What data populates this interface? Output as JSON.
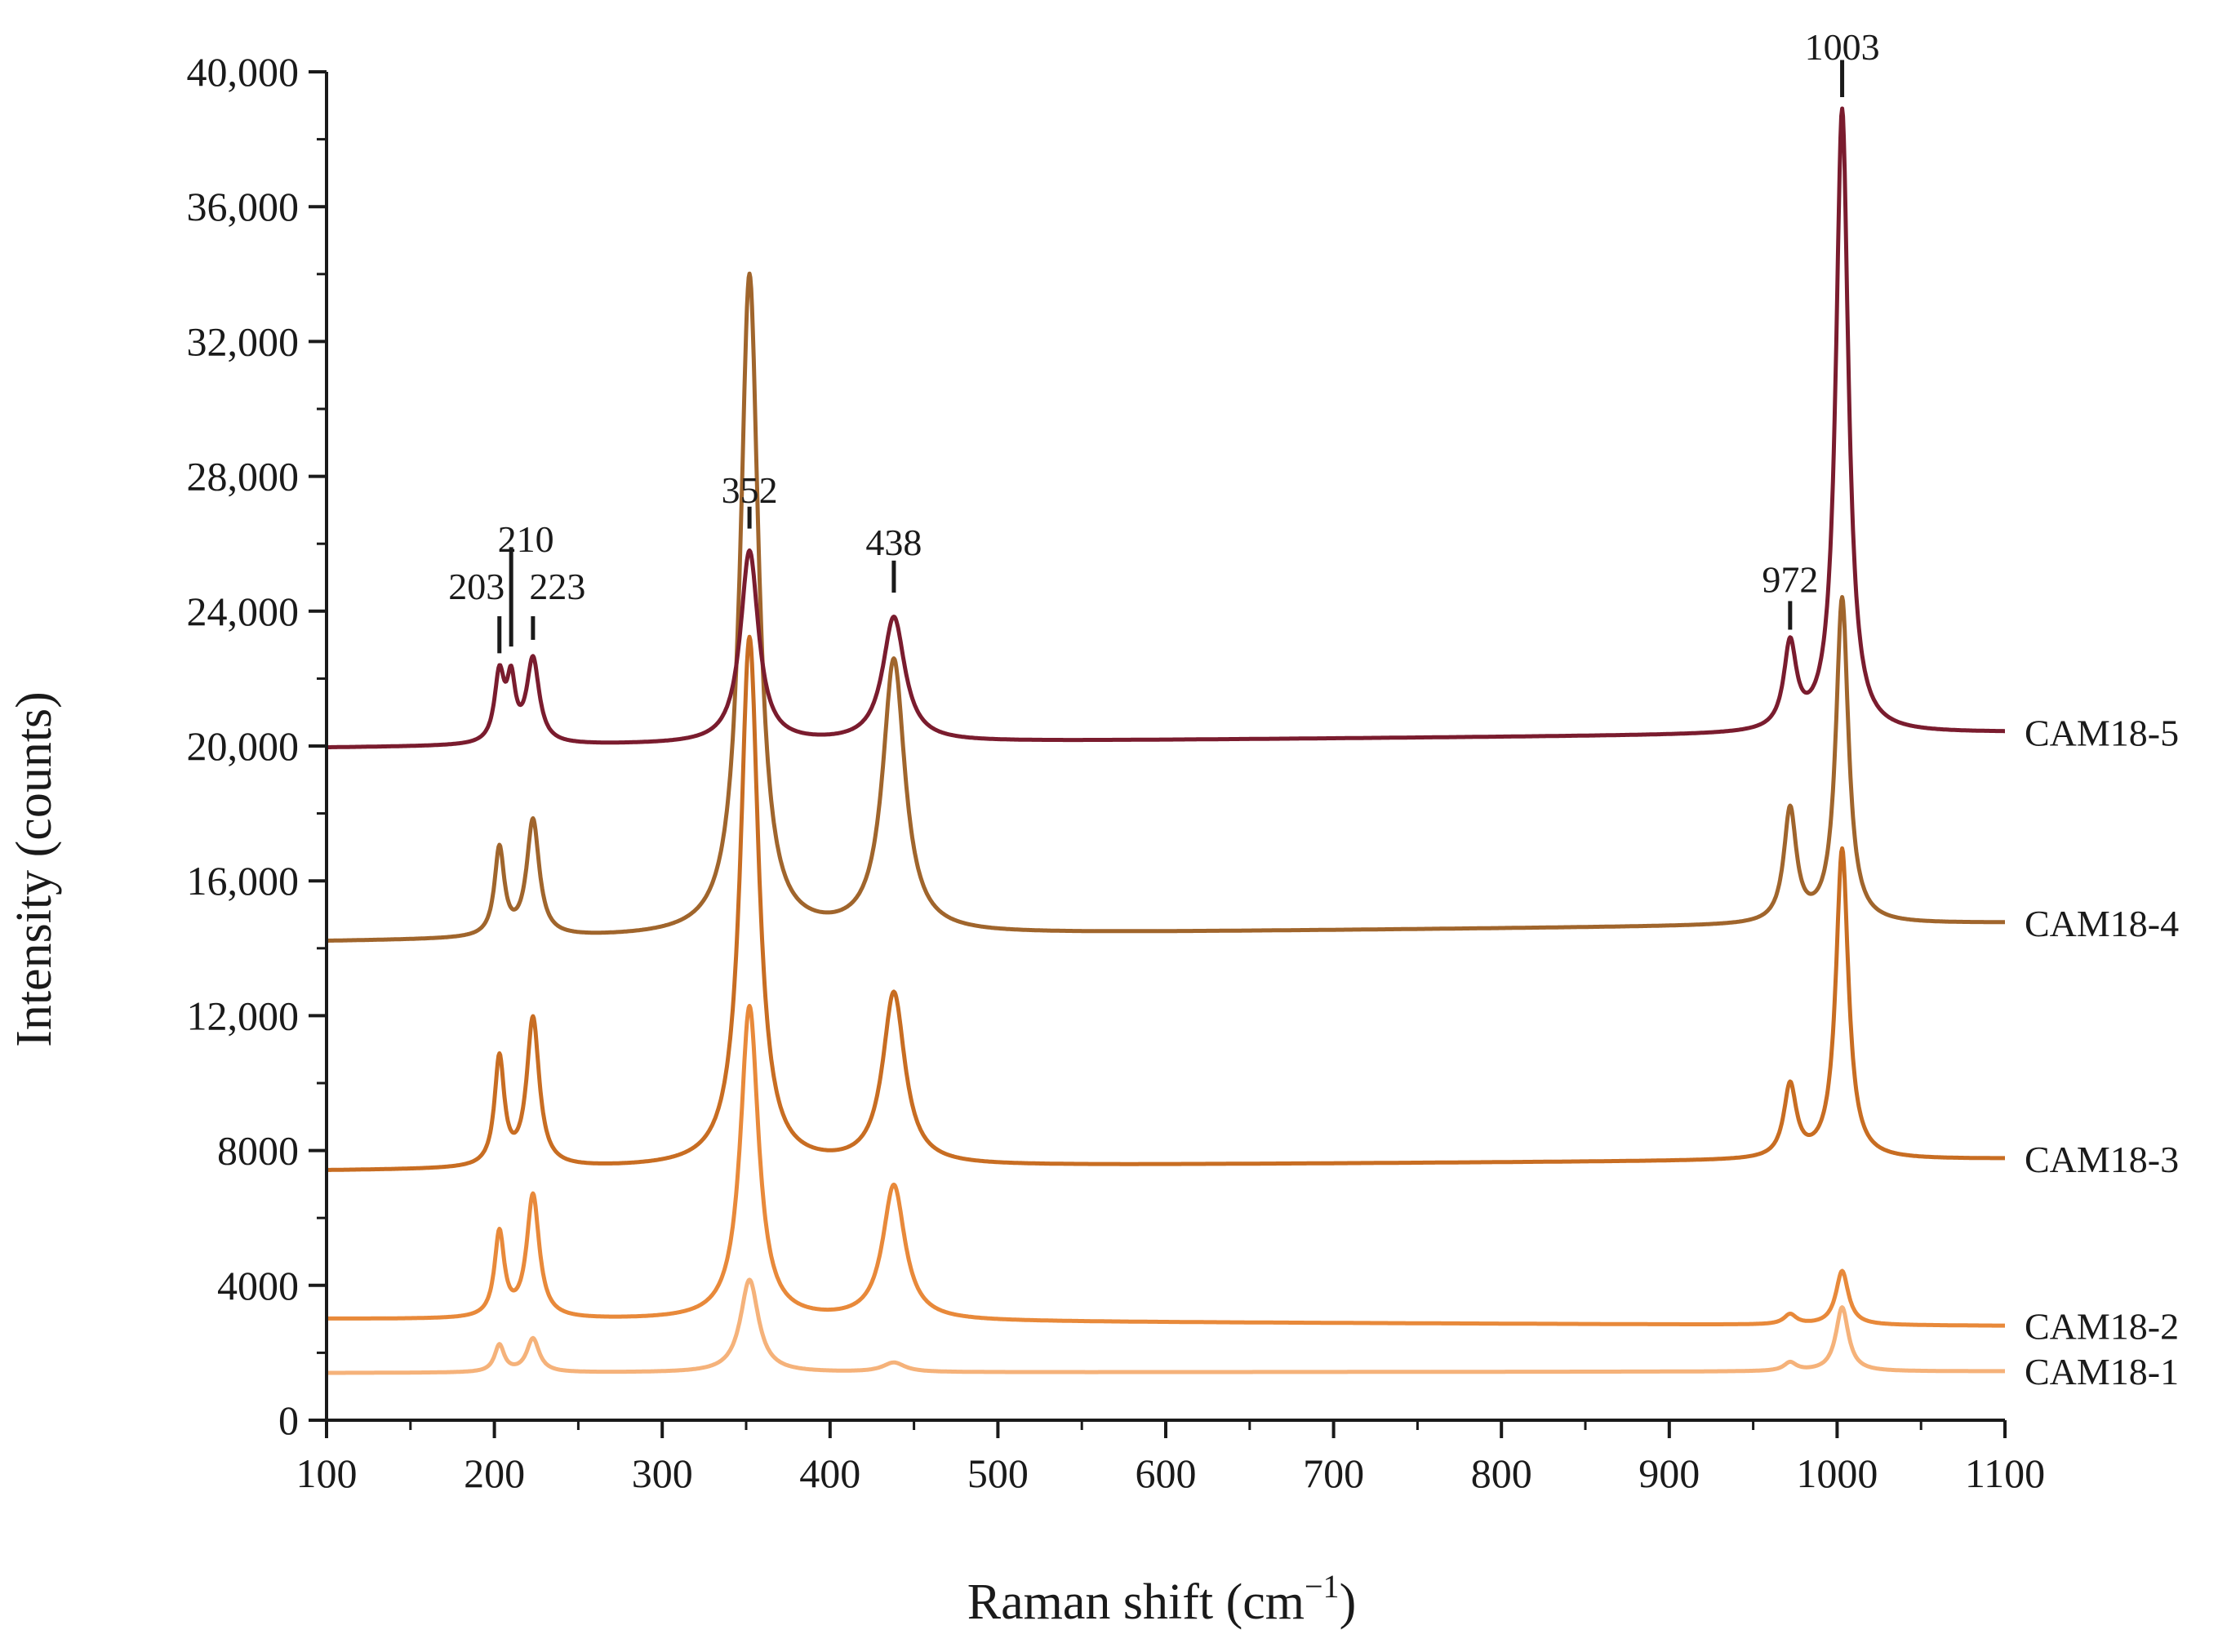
{
  "chart_data": {
    "type": "line",
    "title": "",
    "xlabel": "Raman shift (cm",
    "xlabel_sup": "−1",
    "xlabel_suffix": ")",
    "ylabel": "Intensity (counts)",
    "xlim": [
      100,
      1100
    ],
    "ylim": [
      0,
      40000
    ],
    "x_ticks": [
      100,
      200,
      300,
      400,
      500,
      600,
      700,
      800,
      900,
      1000,
      1100
    ],
    "x_tick_labels": [
      "100",
      "200",
      "300",
      "400",
      "500",
      "600",
      "700",
      "800",
      "900",
      "1000",
      "1100"
    ],
    "y_ticks": [
      0,
      4000,
      8000,
      12000,
      16000,
      20000,
      24000,
      28000,
      32000,
      36000,
      40000
    ],
    "y_tick_labels": [
      "0",
      "4000",
      "8000",
      "12,000",
      "16,000",
      "20,000",
      "24,000",
      "28,000",
      "32,000",
      "36,000",
      "40,000"
    ],
    "grid": false,
    "series": [
      {
        "name": "CAM18-1",
        "color": "#f5b27a",
        "baseline": [
          1400,
          1450
        ],
        "peaks": [
          [
            203,
            800,
            3.5
          ],
          [
            223,
            1000,
            4.5
          ],
          [
            352,
            2750,
            6.5
          ],
          [
            438,
            280,
            8
          ],
          [
            972,
            250,
            4.5
          ],
          [
            1003,
            1900,
            4.5
          ]
        ]
      },
      {
        "name": "CAM18-2",
        "color": "#e8893a",
        "baseline": [
          3000,
          2800
        ],
        "peaks": [
          [
            203,
            2500,
            3.5
          ],
          [
            223,
            3650,
            4.5
          ],
          [
            352,
            9300,
            6.5
          ],
          [
            438,
            4000,
            8
          ],
          [
            972,
            300,
            4.5
          ],
          [
            1003,
            1600,
            4.5
          ]
        ]
      },
      {
        "name": "CAM18-3",
        "color": "#c86d22",
        "baseline": [
          7400,
          7750
        ],
        "peaks": [
          [
            203,
            3200,
            3.5
          ],
          [
            223,
            4400,
            4.5
          ],
          [
            352,
            15700,
            6.5
          ],
          [
            438,
            5100,
            8
          ],
          [
            972,
            2150,
            4.5
          ],
          [
            1003,
            9200,
            4.5
          ]
        ]
      },
      {
        "name": "CAM18-4",
        "color": "#a0652c",
        "baseline": [
          14200,
          14750
        ],
        "peaks": [
          [
            203,
            2600,
            3.5
          ],
          [
            223,
            3450,
            4.5
          ],
          [
            352,
            19600,
            6.5
          ],
          [
            438,
            8100,
            8
          ],
          [
            972,
            3350,
            4.5
          ],
          [
            1003,
            9650,
            4.5
          ]
        ]
      },
      {
        "name": "CAM18-5",
        "color": "#7a1c2e",
        "baseline": [
          19950,
          20400
        ],
        "peaks": [
          [
            203,
            2000,
            3.5
          ],
          [
            210,
            1700,
            3
          ],
          [
            223,
            2500,
            4.5
          ],
          [
            352,
            5700,
            6.5
          ],
          [
            438,
            3700,
            8
          ],
          [
            972,
            2500,
            4.5
          ],
          [
            1003,
            18500,
            4.5
          ]
        ]
      }
    ],
    "annotations": [
      {
        "label": "203",
        "x": 203,
        "y": 22400
      },
      {
        "label": "210",
        "x": 210,
        "y": 22600
      },
      {
        "label": "223",
        "x": 223,
        "y": 22800
      },
      {
        "label": "352",
        "x": 352,
        "y": 26100
      },
      {
        "label": "438",
        "x": 438,
        "y": 24200
      },
      {
        "label": "972",
        "x": 972,
        "y": 23100
      },
      {
        "label": "1003",
        "x": 1003,
        "y": 38900
      }
    ]
  }
}
